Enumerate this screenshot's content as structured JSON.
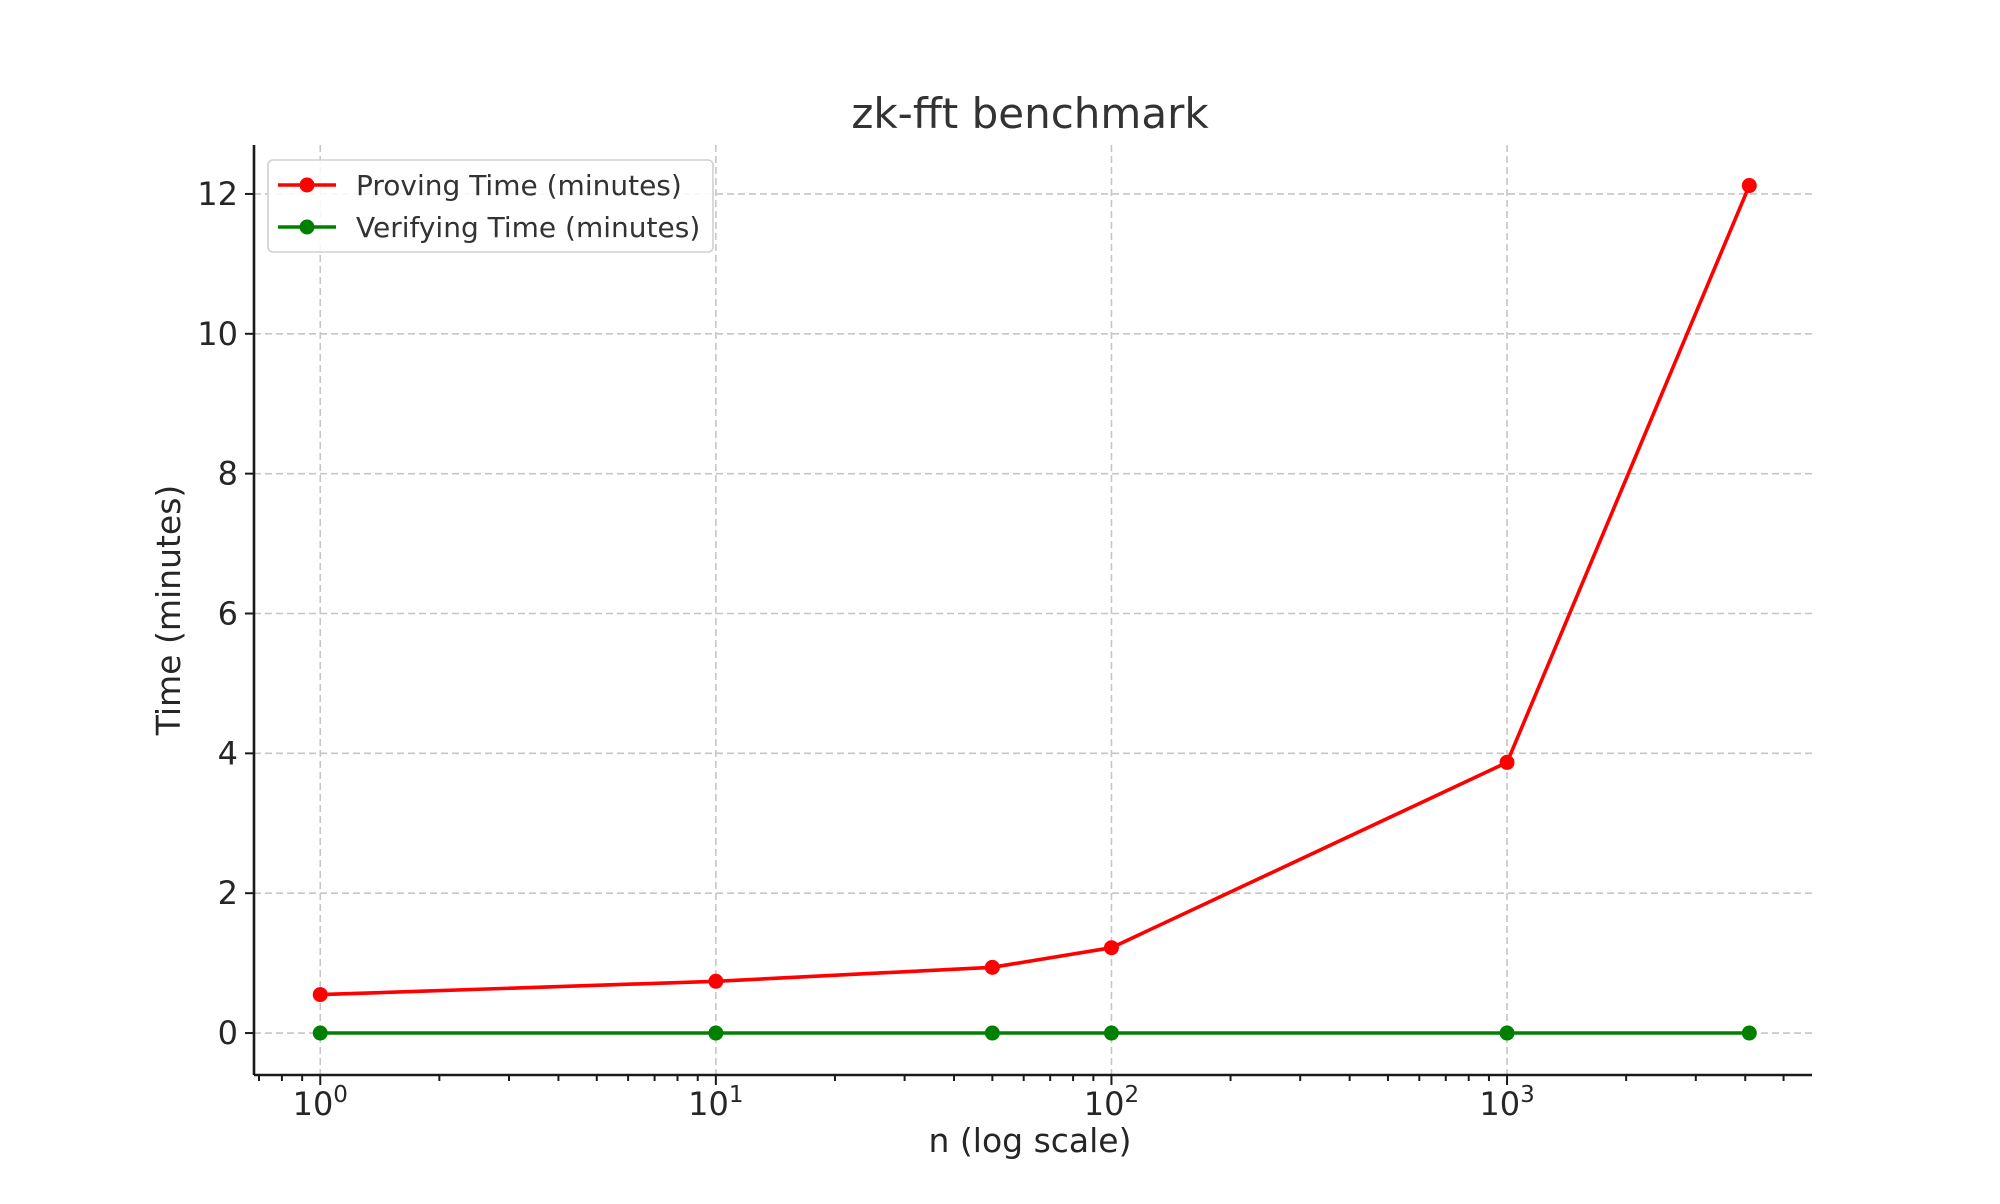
{
  "chart_data": {
    "type": "line",
    "title": "zk-fft benchmark",
    "xlabel": "n (log scale)",
    "ylabel": "Time (minutes)",
    "xscale": "log",
    "x_ticks": [
      {
        "value": 1,
        "base": "10",
        "exp": "0"
      },
      {
        "value": 10,
        "base": "10",
        "exp": "1"
      },
      {
        "value": 100,
        "base": "10",
        "exp": "2"
      },
      {
        "value": 1000,
        "base": "10",
        "exp": "3"
      }
    ],
    "y_ticks": [
      0,
      2,
      4,
      6,
      8,
      10,
      12
    ],
    "xlim": [
      0.68,
      5900
    ],
    "ylim": [
      -0.6,
      12.7
    ],
    "grid": true,
    "legend_position": "top-left",
    "series": [
      {
        "name": "Proving Time (minutes)",
        "color": "#ff0000",
        "x": [
          1,
          10,
          50,
          100,
          1000,
          4096
        ],
        "y": [
          0.55,
          0.74,
          0.94,
          1.22,
          3.87,
          12.12
        ]
      },
      {
        "name": "Verifying Time (minutes)",
        "color": "#008000",
        "x": [
          1,
          10,
          50,
          100,
          1000,
          4096
        ],
        "y": [
          0.0,
          0.0,
          0.0,
          0.0,
          0.0,
          0.0
        ]
      }
    ]
  }
}
